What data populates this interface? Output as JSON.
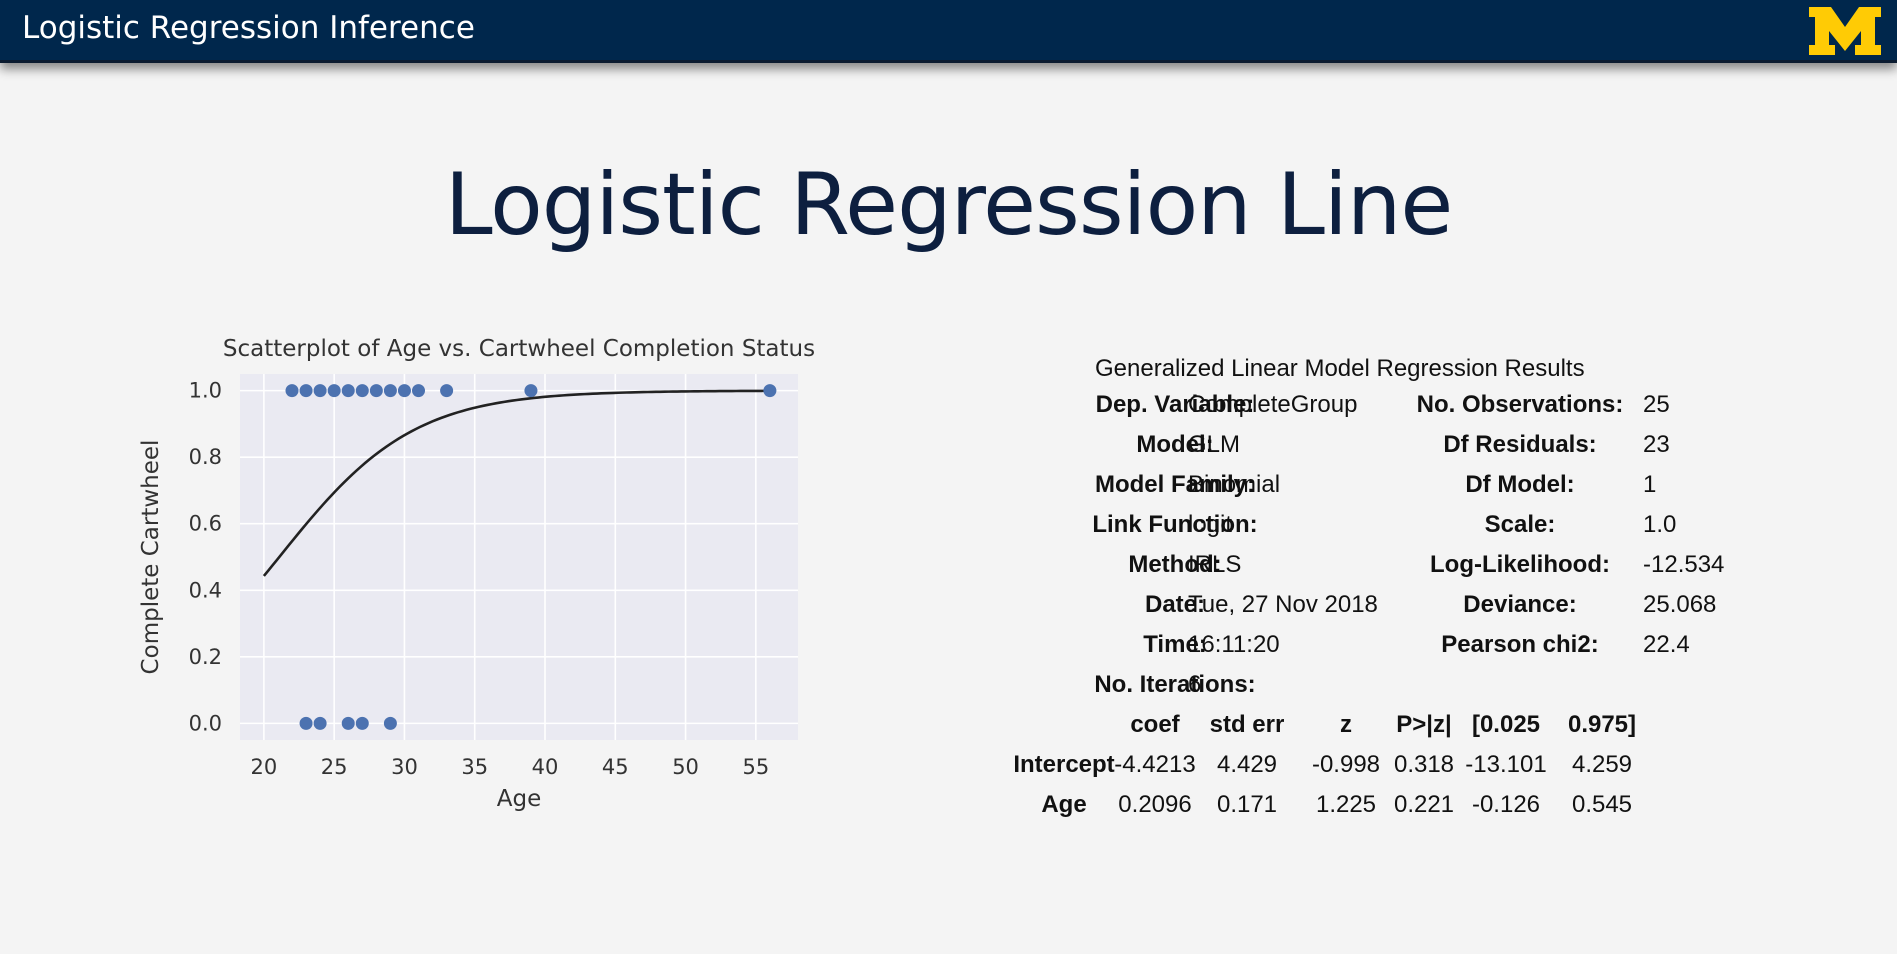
{
  "header": {
    "title": "Logistic Regression Inference",
    "logo_letter": "M",
    "logo_color": "#ffcb05",
    "bar_color": "#00274c"
  },
  "slide": {
    "title": "Logistic Regression Line"
  },
  "chart_data": {
    "type": "scatter",
    "title": "Scatterplot of Age vs. Cartwheel Completion Status",
    "xlabel": "Age",
    "ylabel": "Complete Cartwheel",
    "xlim": [
      18.3,
      58
    ],
    "ylim": [
      -0.05,
      1.05
    ],
    "x_ticks": [
      20,
      25,
      30,
      35,
      40,
      45,
      50,
      55
    ],
    "y_ticks": [
      0.0,
      0.2,
      0.4,
      0.6,
      0.8,
      1.0
    ],
    "x_tick_labels": [
      "20",
      "25",
      "30",
      "35",
      "40",
      "45",
      "50",
      "55"
    ],
    "y_tick_labels": [
      "0.0",
      "0.2",
      "0.4",
      "0.6",
      "0.8",
      "1.0"
    ],
    "grid": true,
    "background": "#eaeaf2",
    "point_color": "#4c72b0",
    "line_color": "#222222",
    "points": [
      {
        "x": 22,
        "y": 1
      },
      {
        "x": 23,
        "y": 1
      },
      {
        "x": 24,
        "y": 1
      },
      {
        "x": 25,
        "y": 1
      },
      {
        "x": 26,
        "y": 1
      },
      {
        "x": 27,
        "y": 1
      },
      {
        "x": 28,
        "y": 1
      },
      {
        "x": 29,
        "y": 1
      },
      {
        "x": 30,
        "y": 1
      },
      {
        "x": 31,
        "y": 1
      },
      {
        "x": 33,
        "y": 1
      },
      {
        "x": 39,
        "y": 1
      },
      {
        "x": 56,
        "y": 1
      },
      {
        "x": 23,
        "y": 0
      },
      {
        "x": 24,
        "y": 0
      },
      {
        "x": 26,
        "y": 0
      },
      {
        "x": 27,
        "y": 0
      },
      {
        "x": 29,
        "y": 0
      }
    ],
    "fit_curve": {
      "intercept": -4.4213,
      "slope": 0.2096,
      "x_range": [
        20,
        56
      ]
    }
  },
  "glm": {
    "caption": "Generalized Linear Model Regression Results",
    "left_rows": [
      {
        "label": "Dep. Variable:",
        "value": "CompleteGroup"
      },
      {
        "label": "Model:",
        "value": "GLM"
      },
      {
        "label": "Model Family:",
        "value": "Binomial"
      },
      {
        "label": "Link Function:",
        "value": "logit"
      },
      {
        "label": "Method:",
        "value": "IRLS"
      },
      {
        "label": "Date:",
        "value": "Tue, 27 Nov 2018"
      },
      {
        "label": "Time:",
        "value": "16:11:20"
      },
      {
        "label": "No. Iterations:",
        "value": "6"
      }
    ],
    "right_rows": [
      {
        "label": "No. Observations:",
        "value": "25"
      },
      {
        "label": "Df Residuals:",
        "value": "23"
      },
      {
        "label": "Df Model:",
        "value": "1"
      },
      {
        "label": "Scale:",
        "value": "1.0"
      },
      {
        "label": "Log-Likelihood:",
        "value": "-12.534"
      },
      {
        "label": "Deviance:",
        "value": "25.068"
      },
      {
        "label": "Pearson chi2:",
        "value": "22.4"
      }
    ],
    "coef_header": [
      "coef",
      "std err",
      "z",
      "P>|z|",
      "[0.025",
      "0.975]"
    ],
    "coef_rows": [
      {
        "name": "Intercept",
        "values": [
          "-4.4213",
          "4.429",
          "-0.998",
          "0.318",
          "-13.101",
          "4.259"
        ]
      },
      {
        "name": "Age",
        "values": [
          "0.2096",
          "0.171",
          "1.225",
          "0.221",
          "-0.126",
          "0.545"
        ]
      }
    ]
  }
}
